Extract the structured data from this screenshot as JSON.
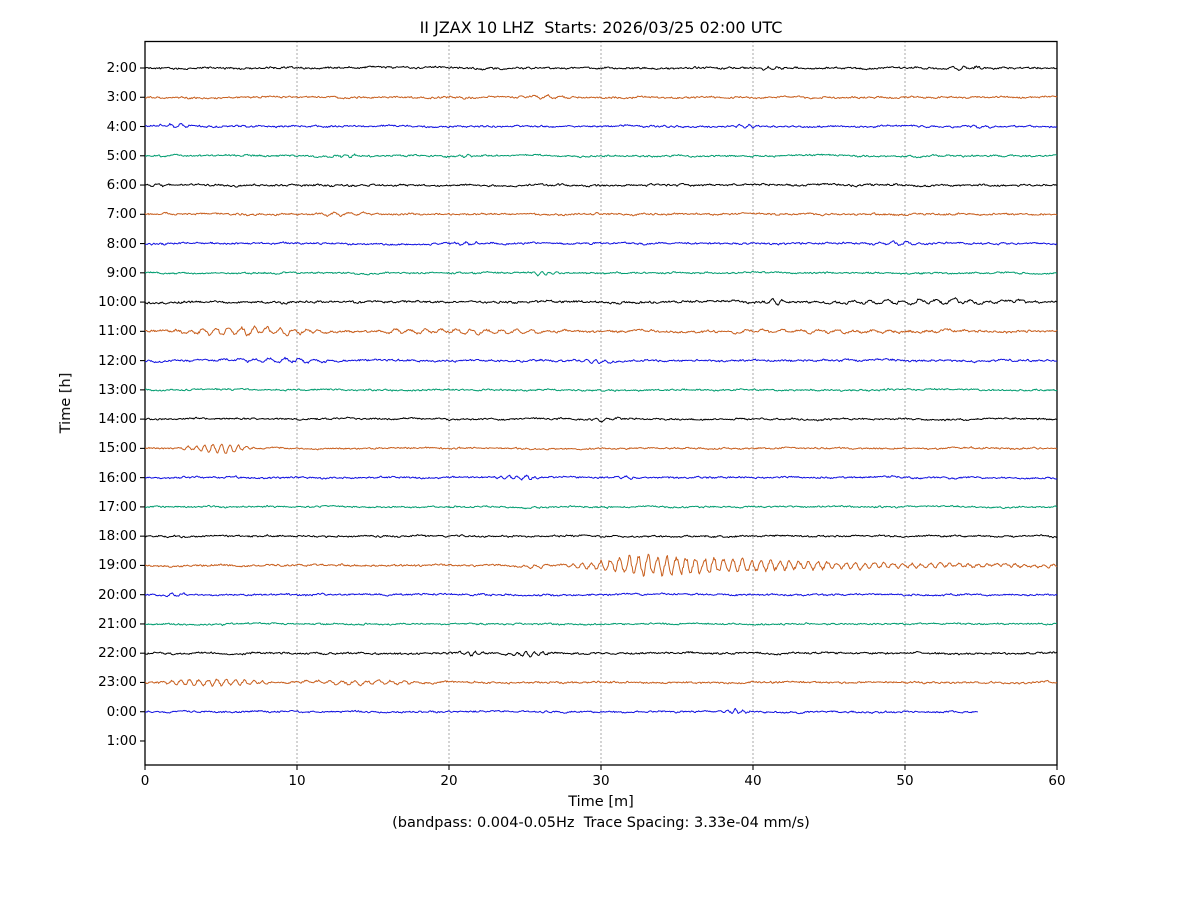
{
  "chart_data": {
    "type": "line",
    "variant": "seismic-dayplot",
    "title": "II JZAX 10 LHZ  Starts: 2026/03/25 02:00 UTC",
    "xlabel": "Time [m]",
    "ylabel": "Time [h]",
    "subtitle": "(bandpass: 0.004-0.05Hz  Trace Spacing: 3.33e-04 mm/s)",
    "xlim": [
      0,
      60
    ],
    "x_ticks": [
      0,
      10,
      20,
      30,
      40,
      50,
      60
    ],
    "grid": {
      "vertical_dotted_minutes": [
        10,
        20,
        30,
        40,
        50
      ]
    },
    "legend": "none",
    "trace_colors": [
      "#000000",
      "#c85f1e",
      "#1111e0",
      "#009c6f"
    ],
    "minutes_per_row": 60,
    "rows": [
      {
        "label": "2:00",
        "color_index": 0,
        "base_amp": 1.3,
        "bursts": [
          {
            "start": 40,
            "end": 42.5,
            "amp": 1.6,
            "period": 0.6
          },
          {
            "start": 51.5,
            "end": 56,
            "amp": 1.4,
            "period": 0.8
          }
        ]
      },
      {
        "label": "3:00",
        "color_index": 1,
        "base_amp": 1.25,
        "bursts": [
          {
            "start": 24,
            "end": 29,
            "amp": 1.5,
            "period": 0.9
          }
        ]
      },
      {
        "label": "4:00",
        "color_index": 2,
        "base_amp": 1.2,
        "bursts": [
          {
            "start": 0.5,
            "end": 3.5,
            "amp": 1.7,
            "period": 0.7
          },
          {
            "start": 38.5,
            "end": 41,
            "amp": 1.4,
            "period": 0.6
          },
          {
            "start": 53.5,
            "end": 56.5,
            "amp": 1.5,
            "period": 0.7
          }
        ]
      },
      {
        "label": "5:00",
        "color_index": 3,
        "base_amp": 1.15,
        "bursts": [
          {
            "start": 12,
            "end": 14.5,
            "amp": 1.3,
            "period": 0.6
          },
          {
            "start": 20,
            "end": 22,
            "amp": 1.2,
            "period": 0.6
          }
        ]
      },
      {
        "label": "6:00",
        "color_index": 0,
        "base_amp": 1.3,
        "bursts": [
          {
            "start": 0,
            "end": 2,
            "amp": 1.5,
            "period": 0.8
          }
        ]
      },
      {
        "label": "7:00",
        "color_index": 1,
        "base_amp": 1.3,
        "bursts": [
          {
            "start": 10,
            "end": 16,
            "amp": 1.5,
            "period": 1.0
          }
        ]
      },
      {
        "label": "8:00",
        "color_index": 2,
        "base_amp": 1.25,
        "bursts": [
          {
            "start": 19.5,
            "end": 23,
            "amp": 1.4,
            "period": 0.7
          },
          {
            "start": 47,
            "end": 52,
            "amp": 1.5,
            "period": 0.9
          }
        ]
      },
      {
        "label": "9:00",
        "color_index": 3,
        "base_amp": 1.15,
        "bursts": [
          {
            "start": 25,
            "end": 27.5,
            "amp": 1.7,
            "period": 0.5
          }
        ]
      },
      {
        "label": "10:00",
        "color_index": 0,
        "base_amp": 1.5,
        "bursts": [
          {
            "start": 40.5,
            "end": 42.5,
            "amp": 2.3,
            "period": 0.7
          },
          {
            "start": 43,
            "end": 60,
            "amp": 2.2,
            "period": 1.1
          }
        ]
      },
      {
        "label": "11:00",
        "color_index": 1,
        "base_amp": 1.5,
        "bursts": [
          {
            "start": 0.5,
            "end": 13,
            "amp": 3.4,
            "period": 0.85
          },
          {
            "start": 13,
            "end": 30,
            "amp": 2.2,
            "period": 1.0
          },
          {
            "start": 30,
            "end": 60,
            "amp": 1.2,
            "period": 1.2
          }
        ]
      },
      {
        "label": "12:00",
        "color_index": 2,
        "base_amp": 1.35,
        "bursts": [
          {
            "start": 4,
            "end": 14,
            "amp": 2.0,
            "period": 1.0
          },
          {
            "start": 28.5,
            "end": 31,
            "amp": 1.8,
            "period": 0.6
          }
        ]
      },
      {
        "label": "13:00",
        "color_index": 3,
        "base_amp": 1.15,
        "bursts": []
      },
      {
        "label": "14:00",
        "color_index": 0,
        "base_amp": 1.2,
        "bursts": [
          {
            "start": 29,
            "end": 31.5,
            "amp": 1.3,
            "period": 0.7
          }
        ]
      },
      {
        "label": "15:00",
        "color_index": 1,
        "base_amp": 1.1,
        "bursts": [
          {
            "start": 2,
            "end": 7.5,
            "amp": 4.0,
            "period": 0.55
          }
        ]
      },
      {
        "label": "16:00",
        "color_index": 2,
        "base_amp": 1.2,
        "bursts": [
          {
            "start": 22.5,
            "end": 26.5,
            "amp": 1.9,
            "period": 0.55
          },
          {
            "start": 30.5,
            "end": 32.5,
            "amp": 1.4,
            "period": 0.6
          }
        ]
      },
      {
        "label": "17:00",
        "color_index": 3,
        "base_amp": 1.1,
        "bursts": []
      },
      {
        "label": "18:00",
        "color_index": 0,
        "base_amp": 1.2,
        "bursts": []
      },
      {
        "label": "19:00",
        "color_index": 1,
        "base_amp": 1.3,
        "bursts": [
          {
            "start": 24,
            "end": 27,
            "amp": 1.6,
            "period": 0.7
          },
          {
            "start": 27,
            "end": 60,
            "amp": 10,
            "period": 0.62,
            "shape": "decay",
            "peak": 0.18,
            "tau": 0.33
          }
        ]
      },
      {
        "label": "20:00",
        "color_index": 2,
        "base_amp": 1.2,
        "bursts": [
          {
            "start": 1,
            "end": 3.5,
            "amp": 1.7,
            "period": 0.7
          }
        ]
      },
      {
        "label": "21:00",
        "color_index": 3,
        "base_amp": 1.1,
        "bursts": []
      },
      {
        "label": "22:00",
        "color_index": 0,
        "base_amp": 1.3,
        "bursts": [
          {
            "start": 20.5,
            "end": 22.5,
            "amp": 2.4,
            "period": 0.5
          },
          {
            "start": 23.5,
            "end": 27,
            "amp": 2.2,
            "period": 0.55
          }
        ]
      },
      {
        "label": "23:00",
        "color_index": 1,
        "base_amp": 1.3,
        "bursts": [
          {
            "start": 0,
            "end": 9,
            "amp": 2.8,
            "period": 0.6
          },
          {
            "start": 9,
            "end": 20,
            "amp": 1.8,
            "period": 0.8
          }
        ]
      },
      {
        "label": "0:00",
        "color_index": 2,
        "base_amp": 1.2,
        "end_min": 54.8,
        "bursts": [
          {
            "start": 37.5,
            "end": 40,
            "amp": 2.0,
            "period": 0.5
          }
        ]
      },
      {
        "label": "1:00",
        "color_index": 3,
        "base_amp": 0,
        "no_data": true,
        "bursts": []
      }
    ]
  }
}
